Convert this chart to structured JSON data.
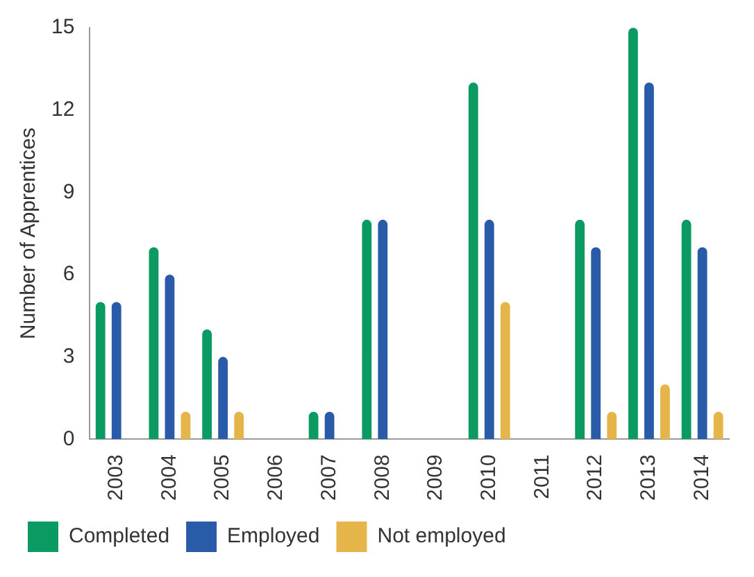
{
  "chart_data": {
    "type": "bar",
    "ylabel": "Number of Apprentices",
    "categories": [
      "2003",
      "2004",
      "2005",
      "2006",
      "2007",
      "2008",
      "2009",
      "2010",
      "2011",
      "2012",
      "2013",
      "2014"
    ],
    "series": [
      {
        "name": "Completed",
        "color": "#0b9a62",
        "values": [
          5,
          7,
          4,
          0,
          1,
          8,
          0,
          13,
          0,
          8,
          15,
          8
        ]
      },
      {
        "name": "Employed",
        "color": "#2a5ba8",
        "values": [
          5,
          6,
          3,
          0,
          1,
          8,
          0,
          8,
          0,
          7,
          13,
          7
        ]
      },
      {
        "name": "Not employed",
        "color": "#e6b54a",
        "values": [
          0,
          1,
          1,
          0,
          0,
          0,
          0,
          5,
          0,
          1,
          2,
          1
        ]
      }
    ],
    "ylim": [
      0,
      15
    ],
    "yticks": [
      0,
      3,
      6,
      9,
      12,
      15
    ],
    "grid": false,
    "legend": "bottom"
  }
}
